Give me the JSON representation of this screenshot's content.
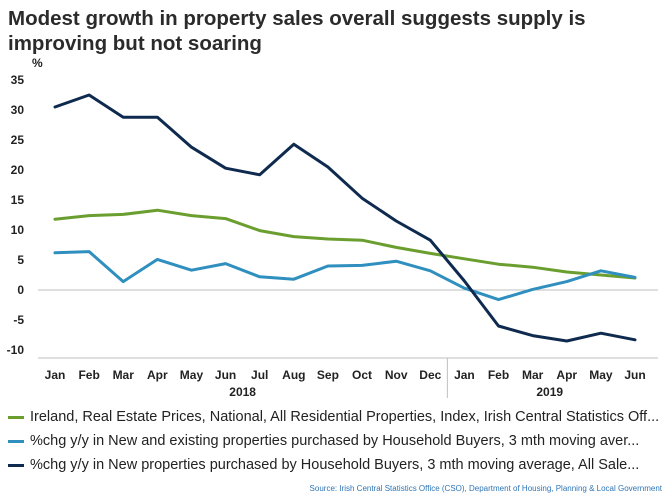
{
  "title": "Modest growth in property sales overall suggests supply is improving but not soaring",
  "source": "Source: Irish Central Statistics Office (CSO), Department of Housing, Planning & Local Government",
  "chart_data": {
    "type": "line",
    "title": "Modest growth in property sales overall suggests supply is improving but not soaring",
    "y_unit": "%",
    "ylim": [
      -10,
      35
    ],
    "yticks": [
      35,
      30,
      25,
      20,
      15,
      10,
      5,
      0,
      -5,
      -10
    ],
    "grid": false,
    "legend_position": "bottom",
    "categories": [
      "Jan",
      "Feb",
      "Mar",
      "Apr",
      "May",
      "Jun",
      "Jul",
      "Aug",
      "Sep",
      "Oct",
      "Nov",
      "Dec",
      "Jan",
      "Feb",
      "Mar",
      "Apr",
      "May",
      "Jun"
    ],
    "year_labels": [
      {
        "label": "2018",
        "start": 0,
        "end": 11
      },
      {
        "label": "2019",
        "start": 12,
        "end": 17
      }
    ],
    "series": [
      {
        "name": "Ireland, Real Estate Prices, National, All Residential Properties, Index, Irish Central Statistics Off...",
        "color": "#6a9e2f",
        "values": [
          11.8,
          12.4,
          12.6,
          13.3,
          12.4,
          11.9,
          9.9,
          8.9,
          8.5,
          8.3,
          7.1,
          6.1,
          5.2,
          4.3,
          3.8,
          3.0,
          2.5,
          2.0
        ]
      },
      {
        "name": "%chg y/y in New and existing properties purchased by Household Buyers, 3 mth moving aver...",
        "color": "#2f8fbf",
        "values": [
          6.2,
          6.4,
          1.4,
          5.1,
          3.3,
          4.4,
          2.2,
          1.8,
          4.0,
          4.1,
          4.8,
          3.2,
          0.3,
          -1.6,
          0.1,
          1.4,
          3.2,
          2.1
        ]
      },
      {
        "name": "%chg y/y in New properties purchased by Household Buyers, 3 mth moving average, All Sale...",
        "color": "#0f2a4f",
        "values": [
          30.5,
          32.5,
          28.8,
          28.8,
          23.8,
          20.3,
          19.2,
          24.3,
          20.5,
          15.3,
          11.5,
          8.3,
          1.5,
          -6.0,
          -7.6,
          -8.5,
          -7.2,
          -8.3
        ]
      }
    ]
  }
}
